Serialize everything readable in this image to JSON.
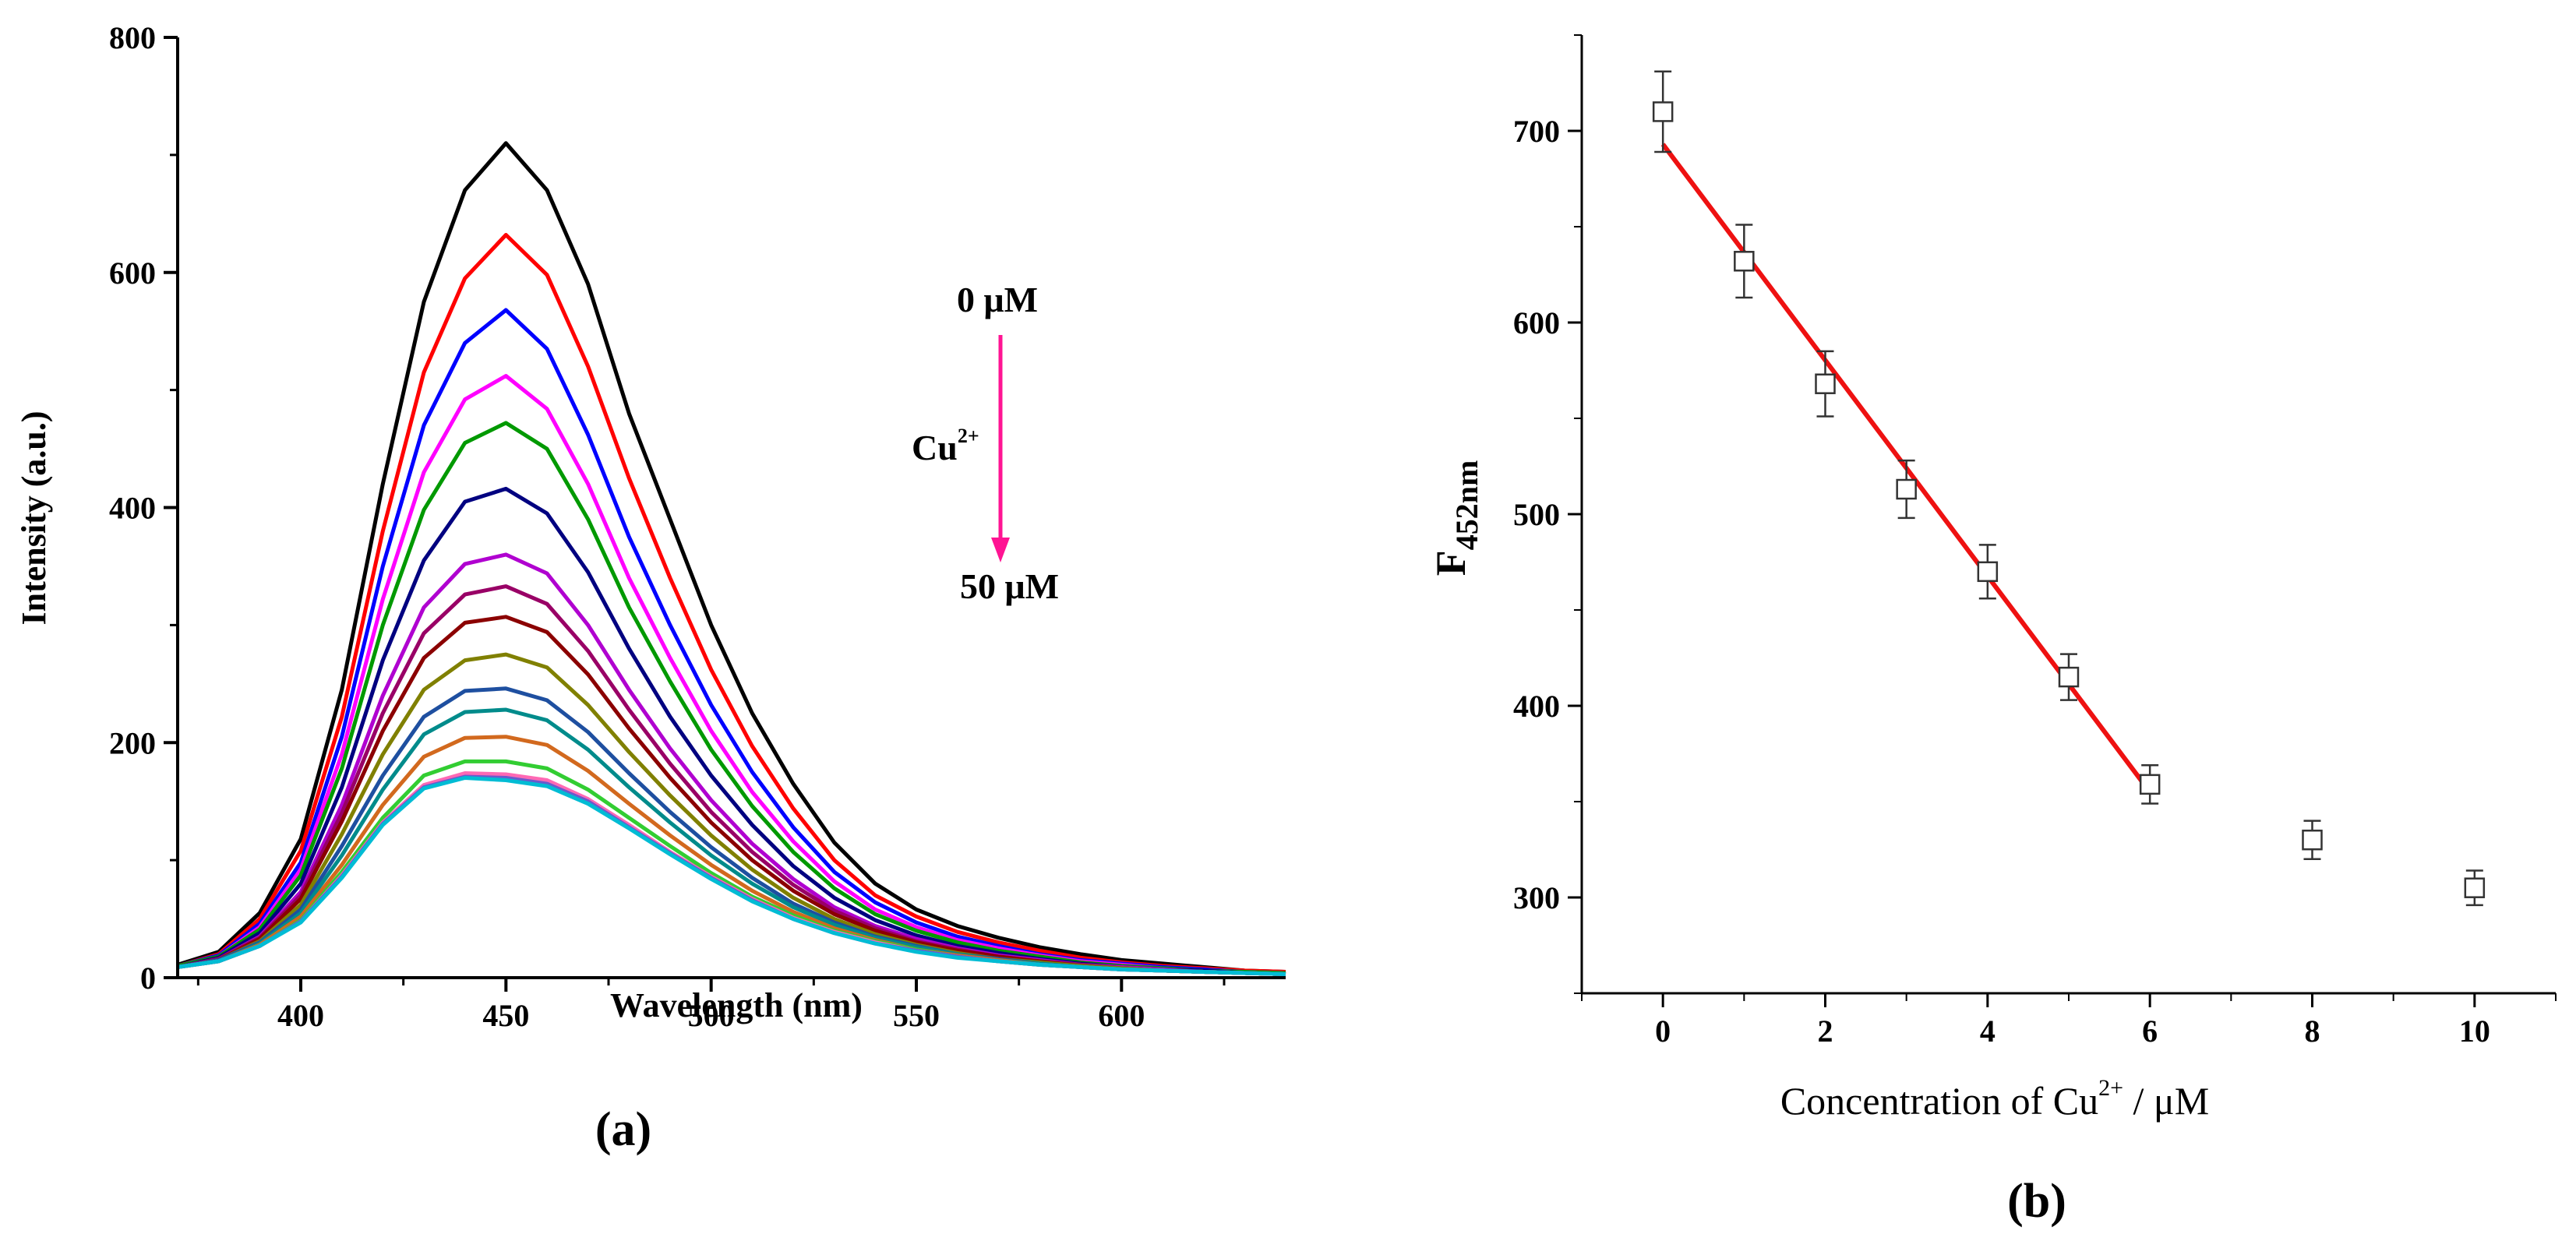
{
  "chart_data": [
    {
      "panel_label": "(a)",
      "type": "line",
      "xlabel": "Wavelength (nm)",
      "ylabel": "Intensity (a.u.)",
      "xlim": [
        370,
        640
      ],
      "ylim": [
        0,
        800
      ],
      "x_ticks": [
        400,
        450,
        500,
        550,
        600
      ],
      "y_ticks": [
        0,
        200,
        400,
        600,
        800
      ],
      "grid": false,
      "annotation": {
        "top_text": "0 μM",
        "ion_text": "Cu",
        "ion_charge": "2+",
        "bottom_text": "50 μM",
        "arrow_color": "#ff1493"
      },
      "x": [
        370,
        380,
        390,
        400,
        410,
        420,
        430,
        440,
        450,
        460,
        470,
        480,
        490,
        500,
        510,
        520,
        530,
        540,
        550,
        560,
        570,
        580,
        590,
        600,
        610,
        620,
        630,
        640
      ],
      "series": [
        {
          "color": "#000000",
          "values": [
            11,
            22,
            55,
            118,
            245,
            420,
            575,
            670,
            710,
            670,
            590,
            480,
            390,
            300,
            225,
            165,
            115,
            80,
            58,
            44,
            34,
            26,
            20,
            15,
            12,
            9,
            6,
            5
          ]
        },
        {
          "color": "#ff0000",
          "values": [
            10,
            20,
            50,
            108,
            222,
            380,
            515,
            595,
            632,
            598,
            520,
            425,
            340,
            262,
            197,
            144,
            100,
            70,
            52,
            39,
            30,
            23,
            17,
            13,
            10,
            8,
            6,
            5
          ]
        },
        {
          "color": "#0000ff",
          "values": [
            10,
            19,
            46,
            98,
            205,
            350,
            470,
            540,
            568,
            535,
            462,
            375,
            300,
            232,
            175,
            128,
            90,
            64,
            47,
            35,
            27,
            20,
            15,
            12,
            9,
            7,
            5,
            4
          ]
        },
        {
          "color": "#ff00ff",
          "values": [
            10,
            18,
            43,
            92,
            190,
            322,
            430,
            492,
            512,
            484,
            420,
            340,
            272,
            210,
            158,
            116,
            82,
            58,
            43,
            32,
            25,
            19,
            14,
            11,
            8,
            6,
            5,
            4
          ]
        },
        {
          "color": "#009900",
          "values": [
            10,
            18,
            41,
            87,
            178,
            300,
            398,
            455,
            472,
            450,
            390,
            315,
            252,
            194,
            146,
            107,
            76,
            54,
            40,
            30,
            23,
            18,
            13,
            10,
            8,
            6,
            5,
            4
          ]
        },
        {
          "color": "#000080",
          "values": [
            9,
            17,
            38,
            80,
            162,
            270,
            355,
            405,
            416,
            395,
            345,
            280,
            222,
            172,
            130,
            95,
            68,
            49,
            36,
            27,
            21,
            16,
            12,
            9,
            7,
            6,
            4,
            3
          ]
        },
        {
          "color": "#b000d0",
          "values": [
            9,
            16,
            35,
            73,
            147,
            240,
            315,
            352,
            360,
            344,
            300,
            245,
            195,
            151,
            114,
            84,
            60,
            44,
            33,
            25,
            19,
            15,
            11,
            9,
            7,
            5,
            4,
            3
          ]
        },
        {
          "color": "#990066",
          "values": [
            9,
            16,
            34,
            70,
            140,
            225,
            293,
            326,
            333,
            318,
            278,
            228,
            182,
            141,
            107,
            79,
            57,
            42,
            31,
            24,
            18,
            14,
            11,
            8,
            6,
            5,
            4,
            3
          ]
        },
        {
          "color": "#8b0000",
          "values": [
            9,
            15,
            33,
            67,
            133,
            210,
            272,
            302,
            307,
            294,
            258,
            212,
            170,
            132,
            100,
            74,
            54,
            40,
            30,
            23,
            18,
            14,
            10,
            8,
            6,
            5,
            4,
            3
          ]
        },
        {
          "color": "#808000",
          "values": [
            9,
            15,
            31,
            62,
            122,
            190,
            245,
            270,
            275,
            264,
            232,
            192,
            155,
            121,
            92,
            68,
            50,
            37,
            28,
            21,
            16,
            13,
            10,
            8,
            6,
            5,
            4,
            3
          ]
        },
        {
          "color": "#1e4fa0",
          "values": [
            9,
            15,
            30,
            58,
            112,
            172,
            222,
            244,
            246,
            236,
            209,
            174,
            141,
            111,
            85,
            63,
            47,
            35,
            27,
            20,
            16,
            12,
            9,
            7,
            6,
            5,
            4,
            3
          ]
        },
        {
          "color": "#008b8b",
          "values": [
            9,
            14,
            29,
            55,
            104,
            160,
            207,
            226,
            228,
            219,
            194,
            162,
            132,
            104,
            80,
            60,
            45,
            34,
            26,
            20,
            15,
            12,
            9,
            7,
            6,
            5,
            4,
            3
          ]
        },
        {
          "color": "#d2691e",
          "values": [
            9,
            14,
            28,
            52,
            96,
            147,
            188,
            204,
            205,
            198,
            176,
            148,
            121,
            96,
            74,
            56,
            42,
            32,
            24,
            19,
            15,
            11,
            9,
            7,
            6,
            5,
            4,
            3
          ]
        },
        {
          "color": "#32cd32",
          "values": [
            9,
            14,
            27,
            49,
            90,
            136,
            172,
            184,
            184,
            178,
            160,
            136,
            112,
            89,
            69,
            53,
            40,
            31,
            24,
            18,
            14,
            11,
            9,
            7,
            6,
            5,
            4,
            3
          ]
        },
        {
          "color": "#ff69b4",
          "values": [
            9,
            14,
            27,
            48,
            87,
            132,
            164,
            174,
            173,
            168,
            152,
            130,
            107,
            86,
            67,
            51,
            39,
            30,
            23,
            18,
            14,
            11,
            9,
            7,
            6,
            5,
            4,
            3
          ]
        },
        {
          "color": "#6a5acd",
          "values": [
            9,
            14,
            27,
            48,
            86,
            131,
            162,
            171,
            170,
            165,
            150,
            128,
            106,
            85,
            66,
            50,
            38,
            29,
            23,
            18,
            14,
            11,
            9,
            7,
            6,
            5,
            4,
            3
          ]
        },
        {
          "color": "#00bcd4",
          "values": [
            9,
            14,
            27,
            47,
            85,
            130,
            161,
            170,
            168,
            163,
            148,
            127,
            105,
            84,
            65,
            50,
            38,
            29,
            22,
            17,
            14,
            11,
            9,
            7,
            6,
            5,
            4,
            3
          ]
        }
      ]
    },
    {
      "panel_label": "(b)",
      "type": "scatter",
      "xlabel": "Concentration of Cu",
      "xlabel_superscript": "2+",
      "xlabel_suffix": " / μM",
      "ylabel": "F",
      "ylabel_subscript": "452nm",
      "xlim": [
        -1,
        11
      ],
      "ylim": [
        250,
        750
      ],
      "x_ticks": [
        0,
        2,
        4,
        6,
        8,
        10
      ],
      "y_ticks": [
        300,
        400,
        500,
        600,
        700
      ],
      "grid": false,
      "points": [
        {
          "x": 0,
          "y": 710,
          "err": 21
        },
        {
          "x": 1,
          "y": 632,
          "err": 19
        },
        {
          "x": 2,
          "y": 568,
          "err": 17
        },
        {
          "x": 3,
          "y": 513,
          "err": 15
        },
        {
          "x": 4,
          "y": 470,
          "err": 14
        },
        {
          "x": 5,
          "y": 415,
          "err": 12
        },
        {
          "x": 6,
          "y": 359,
          "err": 10
        },
        {
          "x": 8,
          "y": 330,
          "err": 10
        },
        {
          "x": 10,
          "y": 305,
          "err": 9
        }
      ],
      "fit_line": {
        "x": [
          0,
          6
        ],
        "y": [
          693,
          355
        ],
        "color": "#ee1111"
      }
    }
  ]
}
